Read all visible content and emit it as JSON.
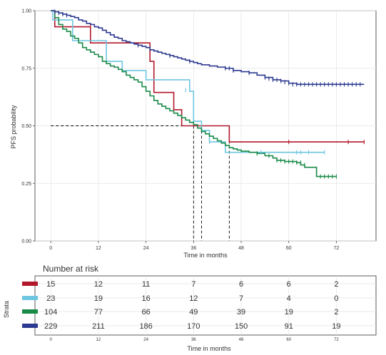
{
  "chart_data": [
    {
      "type": "line",
      "subtype": "kaplan-meier step",
      "xlabel": "Time in months",
      "ylabel": "PFS probability",
      "xlim": [
        -4,
        82
      ],
      "ylim": [
        0,
        1
      ],
      "xticks": [
        "0",
        "12",
        "24",
        "36",
        "48",
        "60",
        "72"
      ],
      "yticks": [
        "0.00",
        "0.25",
        "0.50",
        "0.75",
        "1.00"
      ],
      "grid": true,
      "legend": "none",
      "median_line": {
        "y": 0.5,
        "x_values": [
          36,
          38,
          45
        ]
      },
      "series": [
        {
          "color": "#b2182b",
          "x": [
            0,
            1,
            10,
            10,
            25,
            25,
            26,
            26,
            31,
            31,
            33,
            33,
            41,
            41,
            45,
            45,
            79
          ],
          "y": [
            1.0,
            0.93,
            0.93,
            0.86,
            0.86,
            0.78,
            0.78,
            0.645,
            0.645,
            0.57,
            0.57,
            0.5,
            0.5,
            0.5,
            0.5,
            0.43,
            0.43
          ],
          "censor_x": [
            10,
            60,
            75,
            79
          ],
          "censor_y": [
            0.93,
            0.43,
            0.43,
            0.43
          ]
        },
        {
          "color": "#6ec6e0",
          "x": [
            0,
            0.5,
            5.5,
            5.5,
            14,
            14,
            18,
            18,
            24,
            24,
            35,
            35,
            36,
            36,
            38,
            38,
            40,
            40,
            44,
            44,
            69
          ],
          "y": [
            1.0,
            0.96,
            0.96,
            0.87,
            0.87,
            0.78,
            0.78,
            0.74,
            0.74,
            0.7,
            0.7,
            0.65,
            0.65,
            0.52,
            0.52,
            0.48,
            0.48,
            0.43,
            0.43,
            0.385,
            0.385
          ],
          "censor_x": [
            34,
            40,
            53,
            62,
            63,
            65,
            69
          ],
          "censor_y": [
            0.655,
            0.43,
            0.385,
            0.385,
            0.385,
            0.385,
            0.385
          ]
        },
        {
          "color": "#1a8a48",
          "x": [
            0,
            1,
            2,
            3,
            4,
            5,
            6,
            7,
            8,
            9,
            10,
            11,
            12,
            13,
            14,
            15,
            16,
            17,
            18,
            19,
            20,
            21,
            22,
            23,
            24,
            25,
            26,
            27,
            28,
            29,
            30,
            31,
            32,
            33,
            34,
            35,
            36,
            37,
            38,
            39,
            40,
            41,
            42,
            43,
            44,
            45,
            46,
            47,
            48,
            50,
            52,
            54,
            56,
            57,
            58,
            59,
            60,
            62,
            63,
            64,
            66,
            67,
            67,
            72
          ],
          "y": [
            1.0,
            0.97,
            0.94,
            0.92,
            0.91,
            0.89,
            0.88,
            0.86,
            0.84,
            0.83,
            0.82,
            0.81,
            0.8,
            0.78,
            0.77,
            0.76,
            0.755,
            0.745,
            0.735,
            0.72,
            0.71,
            0.7,
            0.69,
            0.67,
            0.65,
            0.63,
            0.61,
            0.595,
            0.585,
            0.575,
            0.565,
            0.555,
            0.545,
            0.535,
            0.525,
            0.515,
            0.505,
            0.49,
            0.475,
            0.465,
            0.455,
            0.445,
            0.435,
            0.425,
            0.415,
            0.405,
            0.4,
            0.395,
            0.39,
            0.385,
            0.38,
            0.37,
            0.36,
            0.35,
            0.35,
            0.345,
            0.345,
            0.34,
            0.33,
            0.32,
            0.32,
            0.32,
            0.28,
            0.28
          ],
          "censor_x": [
            52,
            55,
            57,
            58,
            59,
            60,
            61,
            62,
            63,
            64,
            68,
            69,
            70,
            71,
            72
          ],
          "censor_y": [
            0.38,
            0.37,
            0.35,
            0.35,
            0.345,
            0.345,
            0.345,
            0.34,
            0.34,
            0.33,
            0.28,
            0.28,
            0.28,
            0.28,
            0.28
          ]
        },
        {
          "color": "#2b3990",
          "x": [
            0,
            1,
            2,
            3,
            4,
            5,
            6,
            7,
            8,
            9,
            10,
            11,
            12,
            13,
            14,
            15,
            16,
            17,
            18,
            19,
            20,
            21,
            22,
            23,
            24,
            25,
            26,
            27,
            28,
            29,
            30,
            31,
            32,
            33,
            34,
            35,
            36,
            37,
            38,
            40,
            42,
            44,
            46,
            48,
            50,
            52,
            54,
            56,
            58,
            60,
            62,
            64,
            66,
            68,
            70,
            72,
            74,
            76,
            79
          ],
          "y": [
            1.0,
            0.995,
            0.99,
            0.985,
            0.98,
            0.975,
            0.97,
            0.96,
            0.955,
            0.945,
            0.94,
            0.93,
            0.925,
            0.915,
            0.905,
            0.895,
            0.885,
            0.88,
            0.87,
            0.865,
            0.86,
            0.855,
            0.85,
            0.845,
            0.84,
            0.83,
            0.825,
            0.82,
            0.815,
            0.81,
            0.805,
            0.8,
            0.795,
            0.79,
            0.785,
            0.78,
            0.775,
            0.77,
            0.765,
            0.76,
            0.755,
            0.75,
            0.74,
            0.735,
            0.73,
            0.72,
            0.71,
            0.7,
            0.695,
            0.685,
            0.68,
            0.68,
            0.68,
            0.68,
            0.68,
            0.68,
            0.68,
            0.68,
            0.68
          ],
          "censor_x": [
            1,
            2,
            3,
            4,
            22,
            30,
            35,
            44,
            45,
            46,
            50,
            54,
            55,
            56,
            57,
            58,
            59,
            60,
            61,
            62,
            63,
            64,
            65,
            66,
            67,
            68,
            69,
            70,
            71,
            72,
            73,
            74,
            75,
            76,
            77,
            78
          ],
          "censor_y": [
            0.995,
            0.99,
            0.985,
            0.98,
            0.85,
            0.805,
            0.78,
            0.75,
            0.75,
            0.74,
            0.73,
            0.71,
            0.705,
            0.7,
            0.7,
            0.695,
            0.69,
            0.685,
            0.68,
            0.68,
            0.68,
            0.68,
            0.68,
            0.68,
            0.68,
            0.68,
            0.68,
            0.68,
            0.68,
            0.68,
            0.68,
            0.68,
            0.68,
            0.68,
            0.68,
            0.68
          ]
        }
      ]
    },
    {
      "type": "table",
      "title": "Number at risk",
      "ylabel": "Strata",
      "xlabel": "Time in months",
      "columns": [
        "0",
        "12",
        "24",
        "36",
        "48",
        "60",
        "72"
      ],
      "rows": [
        {
          "color": "#b2182b",
          "values": [
            "15",
            "12",
            "11",
            "7",
            "6",
            "6",
            "2"
          ]
        },
        {
          "color": "#6ec6e0",
          "values": [
            "23",
            "19",
            "16",
            "12",
            "7",
            "4",
            "0"
          ]
        },
        {
          "color": "#1a8a48",
          "values": [
            "104",
            "77",
            "66",
            "49",
            "39",
            "19",
            "2"
          ]
        },
        {
          "color": "#2b3990",
          "values": [
            "229",
            "211",
            "186",
            "170",
            "150",
            "91",
            "19"
          ]
        }
      ]
    }
  ]
}
